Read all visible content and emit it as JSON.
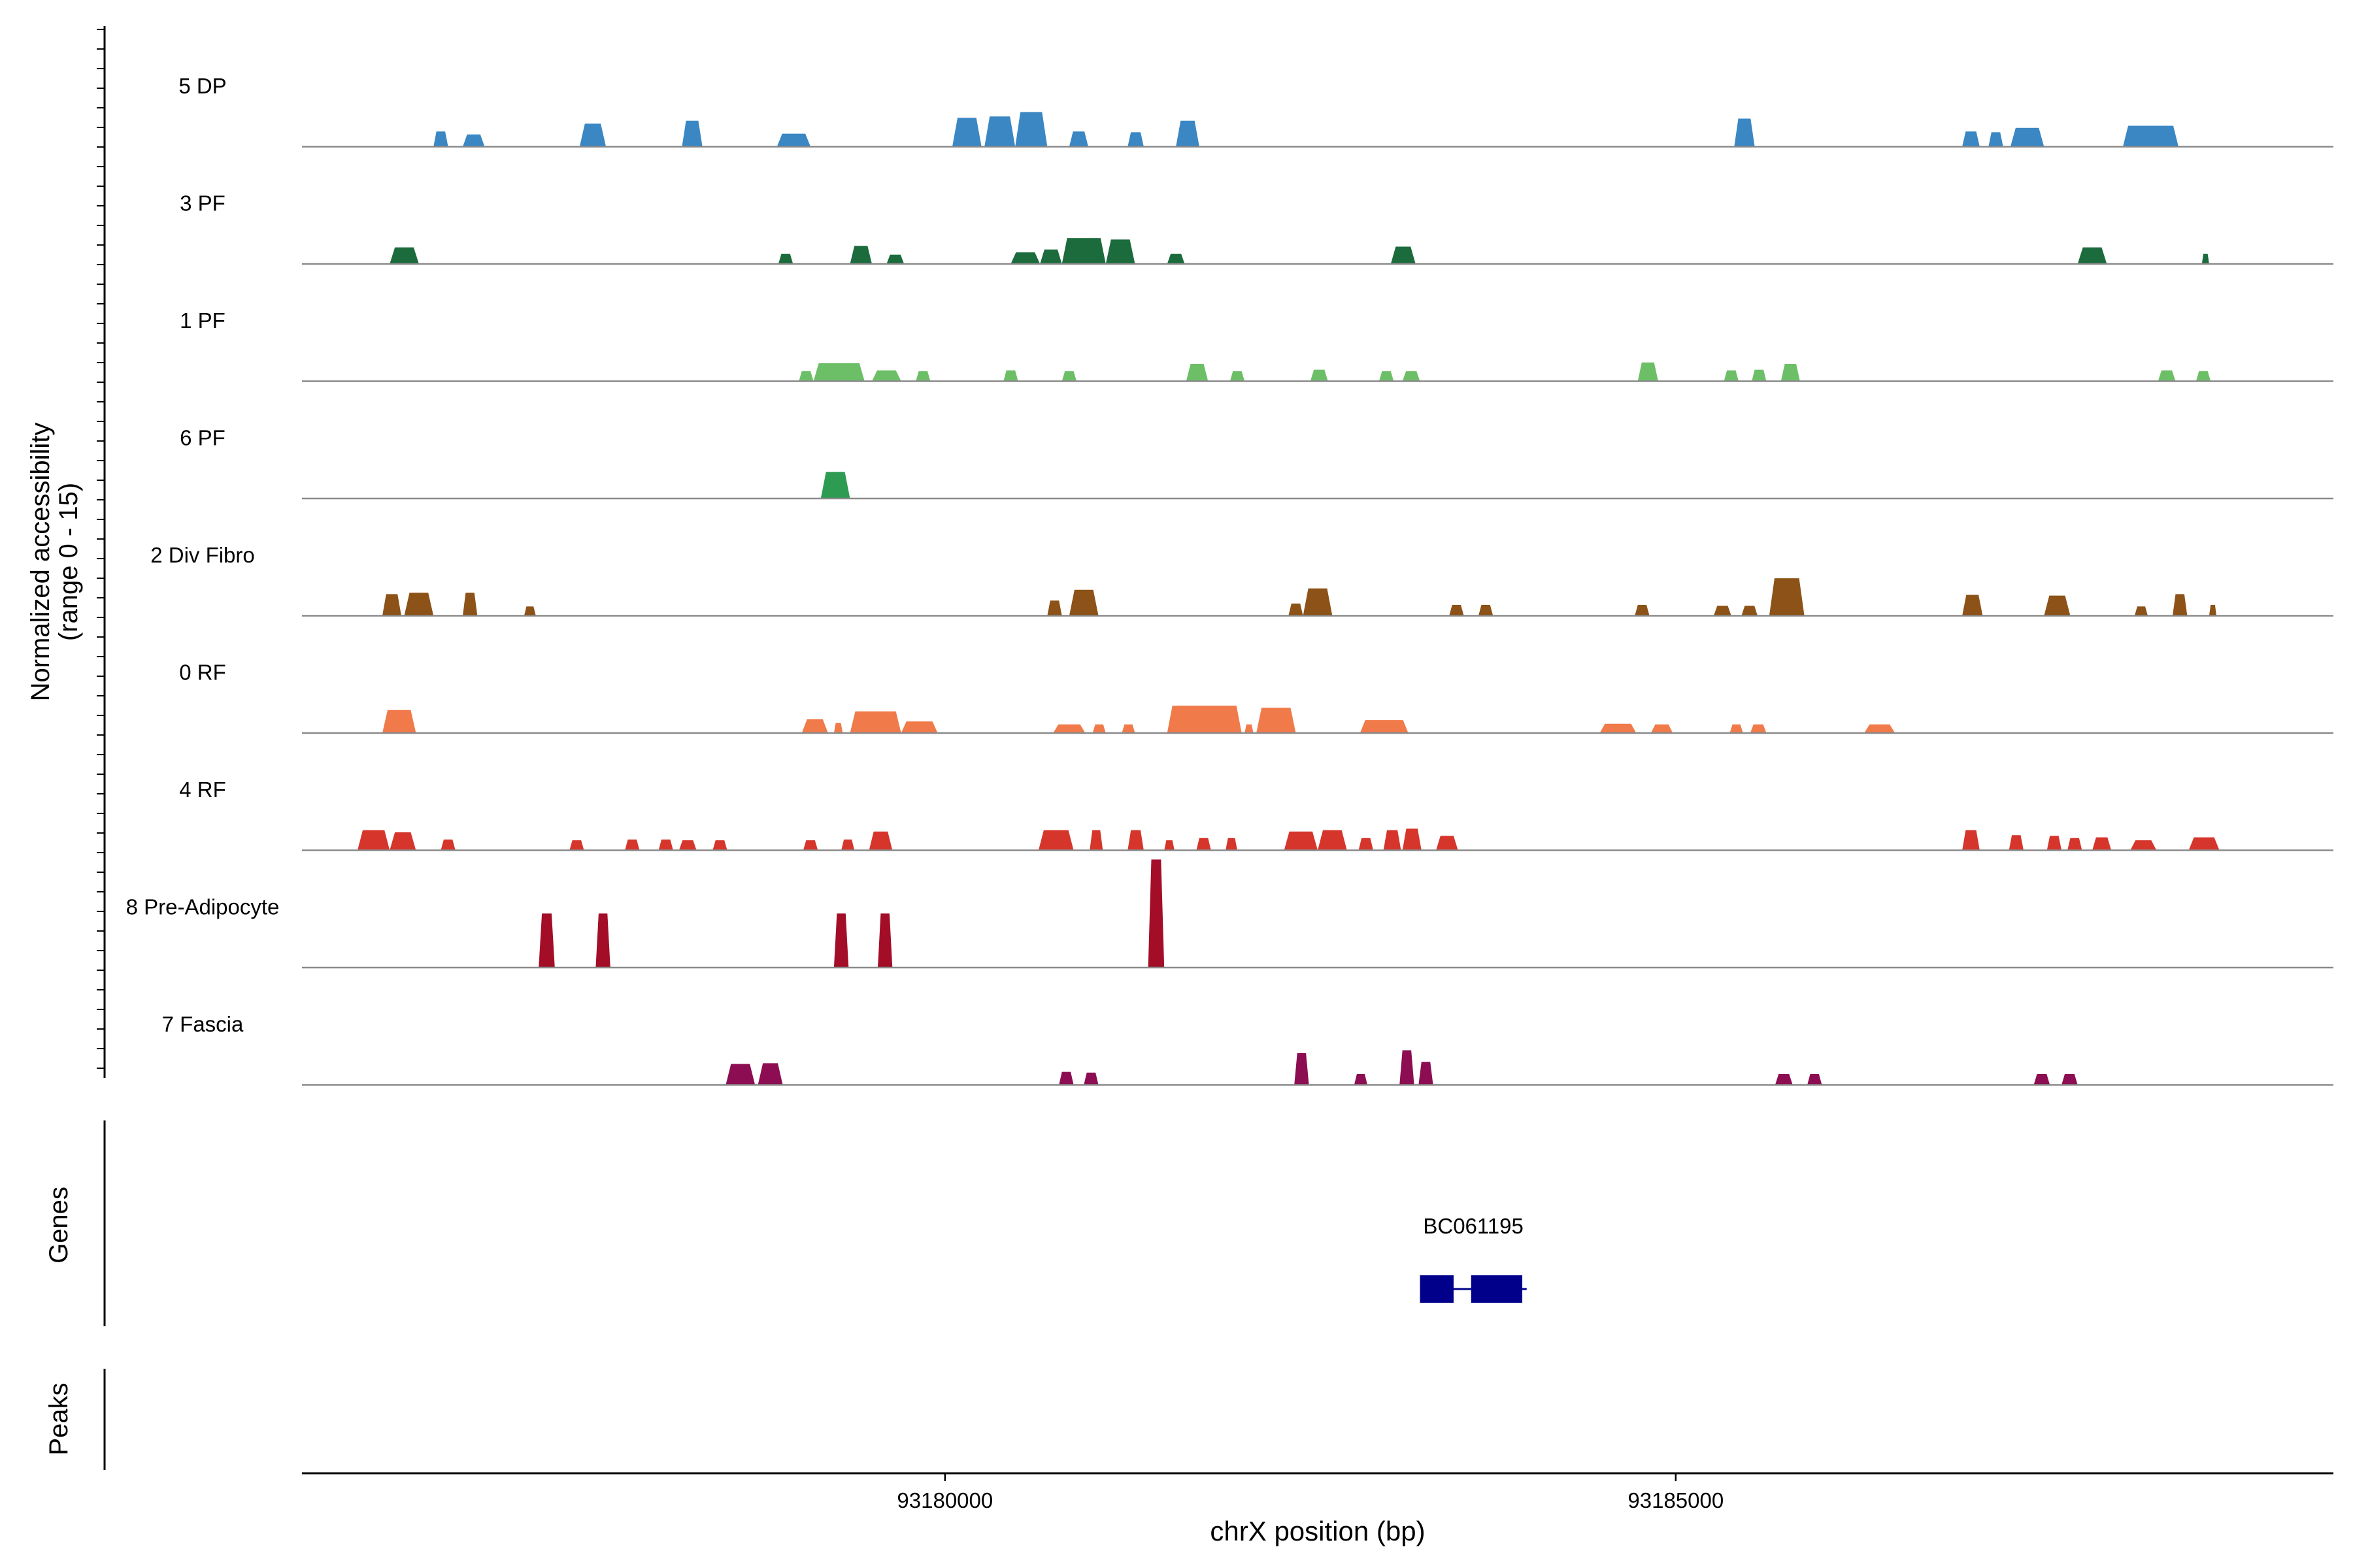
{
  "chart_data": {
    "type": "area",
    "xlabel": "chrX position (bp)",
    "ylabel": "Normalized accessibility",
    "ylabel_range": "(range 0 - 15)",
    "genes_label": "Genes",
    "peaks_label": "Peaks",
    "x_range": [
      93175600,
      93189500
    ],
    "y_range": [
      0,
      15
    ],
    "x_ticks": [
      {
        "value": 93180000,
        "label": "93180000"
      },
      {
        "value": 93185000,
        "label": "93185000"
      }
    ],
    "tracks": [
      {
        "name": "5 DP",
        "color": "#3a87c4",
        "peaks": [
          [
            93176500,
            93176600,
            2.1
          ],
          [
            93176700,
            93176850,
            1.7
          ],
          [
            93177500,
            93177680,
            3.2
          ],
          [
            93178200,
            93178340,
            3.6
          ],
          [
            93178850,
            93179080,
            1.8
          ],
          [
            93180050,
            93180250,
            4.0
          ],
          [
            93180270,
            93180480,
            4.2
          ],
          [
            93180480,
            93180700,
            4.8
          ],
          [
            93180850,
            93180980,
            2.1
          ],
          [
            93181250,
            93181360,
            2.0
          ],
          [
            93181580,
            93181740,
            3.6
          ],
          [
            93185400,
            93185540,
            3.9
          ],
          [
            93186960,
            93187080,
            2.1
          ],
          [
            93187140,
            93187240,
            2.0
          ],
          [
            93187290,
            93187520,
            2.6
          ],
          [
            93188060,
            93188440,
            2.9
          ]
        ]
      },
      {
        "name": "3 PF",
        "color": "#1b6b3c",
        "peaks": [
          [
            93176200,
            93176400,
            2.3
          ],
          [
            93178860,
            93178960,
            1.4
          ],
          [
            93179350,
            93179500,
            2.5
          ],
          [
            93179600,
            93179720,
            1.3
          ],
          [
            93180450,
            93180650,
            1.6
          ],
          [
            93180650,
            93180800,
            2.0
          ],
          [
            93180800,
            93181100,
            3.6
          ],
          [
            93181100,
            93181300,
            3.4
          ],
          [
            93181520,
            93181640,
            1.4
          ],
          [
            93183050,
            93183220,
            2.4
          ],
          [
            93187750,
            93187950,
            2.3
          ],
          [
            93188600,
            93188650,
            1.4
          ]
        ]
      },
      {
        "name": "1 PF",
        "color": "#6dbf67",
        "peaks": [
          [
            93179000,
            93179100,
            1.4
          ],
          [
            93179100,
            93179450,
            2.5
          ],
          [
            93179500,
            93179700,
            1.5
          ],
          [
            93179800,
            93179900,
            1.4
          ],
          [
            93180400,
            93180500,
            1.5
          ],
          [
            93180800,
            93180900,
            1.4
          ],
          [
            93181650,
            93181800,
            2.4
          ],
          [
            93181950,
            93182050,
            1.4
          ],
          [
            93182500,
            93182620,
            1.6
          ],
          [
            93182970,
            93183070,
            1.4
          ],
          [
            93183130,
            93183250,
            1.4
          ],
          [
            93184740,
            93184880,
            2.6
          ],
          [
            93185330,
            93185430,
            1.5
          ],
          [
            93185520,
            93185620,
            1.6
          ],
          [
            93185720,
            93185850,
            2.4
          ],
          [
            93188300,
            93188420,
            1.5
          ],
          [
            93188560,
            93188660,
            1.4
          ]
        ]
      },
      {
        "name": "6 PF",
        "color": "#2e9b52",
        "peaks": [
          [
            93179150,
            93179350,
            3.7
          ]
        ]
      },
      {
        "name": "2 Div Fibro",
        "color": "#8c5217",
        "peaks": [
          [
            93176150,
            93176280,
            3.0
          ],
          [
            93176300,
            93176500,
            3.2
          ],
          [
            93176700,
            93176800,
            3.2
          ],
          [
            93177120,
            93177200,
            1.3
          ],
          [
            93180700,
            93180800,
            2.1
          ],
          [
            93180850,
            93181050,
            3.6
          ],
          [
            93182350,
            93182450,
            1.7
          ],
          [
            93182450,
            93182650,
            3.8
          ],
          [
            93183450,
            93183550,
            1.5
          ],
          [
            93183650,
            93183750,
            1.5
          ],
          [
            93184720,
            93184820,
            1.5
          ],
          [
            93185260,
            93185380,
            1.4
          ],
          [
            93185450,
            93185560,
            1.4
          ],
          [
            93185640,
            93185880,
            5.2
          ],
          [
            93186960,
            93187100,
            2.9
          ],
          [
            93187520,
            93187700,
            2.8
          ],
          [
            93188140,
            93188230,
            1.3
          ],
          [
            93188400,
            93188500,
            3.0
          ],
          [
            93188650,
            93188700,
            1.5
          ]
        ]
      },
      {
        "name": "0 RF",
        "color": "#f07a4a",
        "peaks": [
          [
            93176150,
            93176380,
            3.2
          ],
          [
            93179020,
            93179200,
            1.9
          ],
          [
            93179240,
            93179300,
            1.4
          ],
          [
            93179350,
            93179700,
            3.0
          ],
          [
            93179700,
            93179950,
            1.6
          ],
          [
            93180740,
            93180960,
            1.2
          ],
          [
            93181010,
            93181100,
            1.2
          ],
          [
            93181210,
            93181300,
            1.2
          ],
          [
            93181520,
            93182030,
            3.8
          ],
          [
            93182050,
            93182110,
            1.2
          ],
          [
            93182130,
            93182400,
            3.5
          ],
          [
            93182840,
            93183170,
            1.8
          ],
          [
            93184480,
            93184730,
            1.3
          ],
          [
            93184830,
            93184980,
            1.2
          ],
          [
            93185370,
            93185460,
            1.2
          ],
          [
            93185510,
            93185620,
            1.2
          ],
          [
            93186290,
            93186500,
            1.2
          ]
        ]
      },
      {
        "name": "4 RF",
        "color": "#d6352b",
        "peaks": [
          [
            93175980,
            93176200,
            2.8
          ],
          [
            93176200,
            93176380,
            2.5
          ],
          [
            93176550,
            93176650,
            1.5
          ],
          [
            93177430,
            93177530,
            1.4
          ],
          [
            93177810,
            93177910,
            1.5
          ],
          [
            93178040,
            93178140,
            1.5
          ],
          [
            93178180,
            93178300,
            1.4
          ],
          [
            93178410,
            93178510,
            1.4
          ],
          [
            93179030,
            93179130,
            1.4
          ],
          [
            93179290,
            93179380,
            1.5
          ],
          [
            93179480,
            93179640,
            2.6
          ],
          [
            93180640,
            93180880,
            2.8
          ],
          [
            93180990,
            93181080,
            2.8
          ],
          [
            93181250,
            93181360,
            2.8
          ],
          [
            93181500,
            93181570,
            1.4
          ],
          [
            93181720,
            93181820,
            1.7
          ],
          [
            93181920,
            93182000,
            1.7
          ],
          [
            93182320,
            93182550,
            2.6
          ],
          [
            93182550,
            93182750,
            2.8
          ],
          [
            93182830,
            93182930,
            1.7
          ],
          [
            93183000,
            93183120,
            2.8
          ],
          [
            93183130,
            93183260,
            3.0
          ],
          [
            93183360,
            93183510,
            2.0
          ],
          [
            93186960,
            93187080,
            2.8
          ],
          [
            93187280,
            93187380,
            2.1
          ],
          [
            93187540,
            93187640,
            2.0
          ],
          [
            93187680,
            93187780,
            1.7
          ],
          [
            93187850,
            93187980,
            1.8
          ],
          [
            93188110,
            93188290,
            1.4
          ],
          [
            93188510,
            93188720,
            1.8
          ]
        ]
      },
      {
        "name": "8 Pre-Adipocyte",
        "color": "#a30d27",
        "peaks": [
          [
            93177220,
            93177330,
            7.5
          ],
          [
            93177610,
            93177710,
            7.5
          ],
          [
            93179240,
            93179340,
            7.5
          ],
          [
            93179540,
            93179640,
            7.5
          ],
          [
            93181390,
            93181500,
            15.0
          ]
        ]
      },
      {
        "name": "7 Fascia",
        "color": "#8c0d52",
        "peaks": [
          [
            93178500,
            93178700,
            2.9
          ],
          [
            93178720,
            93178890,
            3.0
          ],
          [
            93180780,
            93180880,
            1.8
          ],
          [
            93180950,
            93181050,
            1.7
          ],
          [
            93182390,
            93182490,
            4.4
          ],
          [
            93182800,
            93182890,
            1.5
          ],
          [
            93183110,
            93183210,
            4.8
          ],
          [
            93183240,
            93183340,
            3.2
          ],
          [
            93185680,
            93185800,
            1.5
          ],
          [
            93185900,
            93186000,
            1.5
          ],
          [
            93187450,
            93187560,
            1.5
          ],
          [
            93187640,
            93187750,
            1.5
          ]
        ]
      }
    ],
    "genes": [
      {
        "name": "BC061195",
        "start": 93183250,
        "end": 93183980,
        "exons": [
          [
            93183250,
            93183480
          ],
          [
            93183600,
            93183950
          ]
        ],
        "color": "#00008b"
      }
    ]
  }
}
